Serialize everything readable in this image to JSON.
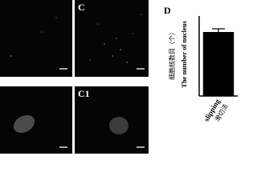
{
  "panels": [
    {
      "label": "C"
    },
    {
      "label": "C1"
    }
  ],
  "chart_data": {
    "type": "bar",
    "panel_label": "D",
    "y_label": "The number of nucleus",
    "y_label_cn": "细胞核数目（个）",
    "categories": [
      "slipping"
    ],
    "category_notes": [
      "滑切法"
    ],
    "values": [
      40
    ],
    "errors": [
      2
    ],
    "color": "#000000",
    "ylim": [
      0,
      50
    ]
  }
}
